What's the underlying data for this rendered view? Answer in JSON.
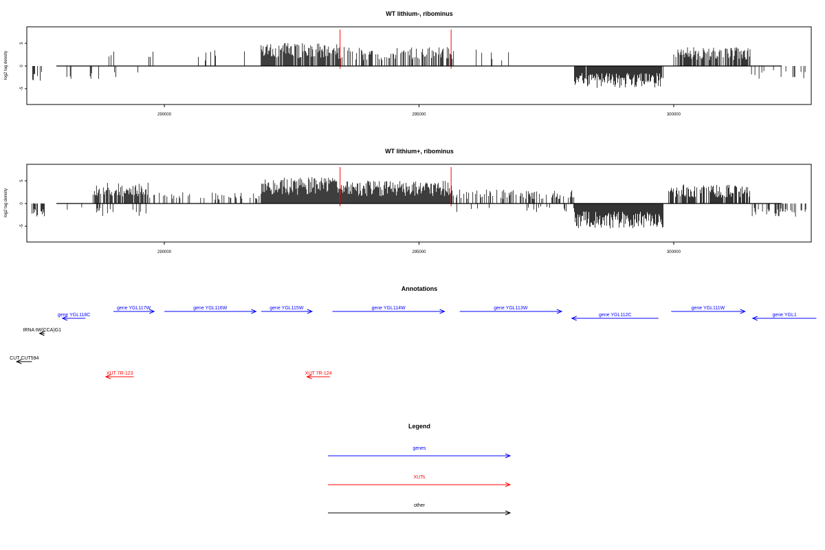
{
  "chart_data": [
    {
      "type": "bar",
      "title": "WT lithium-, ribominus",
      "ylabel": "log2 tag density",
      "xlim": [
        287300,
        302700
      ],
      "ylim": [
        -8,
        8
      ],
      "x_ticks": [
        290000,
        295000,
        300000
      ],
      "x_tick_labels": [
        "290000",
        "295000",
        "300000"
      ],
      "y_ticks": [
        -5,
        0,
        5
      ],
      "y_tick_labels": [
        "-5",
        "0",
        "5"
      ],
      "markers": [
        {
          "x": 293450,
          "color": "#ff0000"
        },
        {
          "x": 295630,
          "color": "#ff0000"
        }
      ],
      "segments": [
        {
          "from": 287400,
          "to": 287600,
          "density": 0.12,
          "amp": 3.3,
          "sign": -1
        },
        {
          "from": 287600,
          "to": 288850,
          "density": 0.012,
          "amp": 3.0,
          "sign": -1
        },
        {
          "from": 288250,
          "to": 289800,
          "density": 0.018,
          "amp": 3.0,
          "sign": 1
        },
        {
          "from": 288400,
          "to": 289500,
          "density": 0.008,
          "amp": 3.5,
          "sign": -1
        },
        {
          "from": 290600,
          "to": 291900,
          "density": 0.03,
          "amp": 3.4,
          "sign": 1
        },
        {
          "from": 291900,
          "to": 293450,
          "density": 0.26,
          "amp": 4.6,
          "sign": 1
        },
        {
          "from": 293450,
          "to": 295650,
          "density": 0.15,
          "amp": 3.8,
          "sign": 1
        },
        {
          "from": 295650,
          "to": 297500,
          "density": 0.012,
          "amp": 3.3,
          "sign": 1
        },
        {
          "from": 297500,
          "to": 298000,
          "density": 0.01,
          "amp": 3.0,
          "sign": 1
        },
        {
          "from": 298050,
          "to": 299800,
          "density": 0.3,
          "amp": 4.4,
          "sign": -1
        },
        {
          "from": 300000,
          "to": 301500,
          "density": 0.22,
          "amp": 3.8,
          "sign": 1
        },
        {
          "from": 301500,
          "to": 302600,
          "density": 0.04,
          "amp": 2.6,
          "sign": -1
        }
      ]
    },
    {
      "type": "bar",
      "title": "WT lithium+, ribominus",
      "ylabel": "log2 tag density",
      "xlim": [
        287300,
        302700
      ],
      "ylim": [
        -8,
        8
      ],
      "x_ticks": [
        290000,
        295000,
        300000
      ],
      "x_tick_labels": [
        "290000",
        "295000",
        "300000"
      ],
      "y_ticks": [
        -5,
        0,
        5
      ],
      "y_tick_labels": [
        "-5",
        "0",
        "5"
      ],
      "markers": [
        {
          "x": 293450,
          "color": "#ff0000"
        },
        {
          "x": 295630,
          "color": "#ff0000"
        }
      ],
      "segments": [
        {
          "from": 287400,
          "to": 287650,
          "density": 0.12,
          "amp": 2.6,
          "sign": -1
        },
        {
          "from": 287650,
          "to": 288600,
          "density": 0.02,
          "amp": 1.6,
          "sign": -1
        },
        {
          "from": 288600,
          "to": 289700,
          "density": 0.22,
          "amp": 4.2,
          "sign": 1
        },
        {
          "from": 288600,
          "to": 289700,
          "density": 0.05,
          "amp": 2.5,
          "sign": -1
        },
        {
          "from": 289700,
          "to": 291900,
          "density": 0.07,
          "amp": 2.3,
          "sign": 1
        },
        {
          "from": 291900,
          "to": 293450,
          "density": 0.45,
          "amp": 5.4,
          "sign": 1
        },
        {
          "from": 293450,
          "to": 295650,
          "density": 0.4,
          "amp": 4.6,
          "sign": 1
        },
        {
          "from": 295650,
          "to": 298050,
          "density": 0.12,
          "amp": 2.8,
          "sign": 1
        },
        {
          "from": 295700,
          "to": 298050,
          "density": 0.03,
          "amp": 1.8,
          "sign": -1
        },
        {
          "from": 298050,
          "to": 299800,
          "density": 0.5,
          "amp": 5.0,
          "sign": -1
        },
        {
          "from": 299900,
          "to": 301500,
          "density": 0.25,
          "amp": 3.8,
          "sign": 1
        },
        {
          "from": 301500,
          "to": 302600,
          "density": 0.1,
          "amp": 2.8,
          "sign": -1
        }
      ]
    }
  ],
  "annotations": {
    "title": "Annotations",
    "items": [
      {
        "label": "gene YGL117W",
        "from": 289000,
        "to": 289800,
        "strand": "+",
        "row": 0,
        "kind": "gene"
      },
      {
        "label": "gene YGL118C",
        "from": 288450,
        "to": 288000,
        "strand": "-",
        "row": 1,
        "kind": "gene"
      },
      {
        "label": "gene YGL116W",
        "from": 290000,
        "to": 291800,
        "strand": "+",
        "row": 0,
        "kind": "gene"
      },
      {
        "label": "gene YGL115W",
        "from": 291900,
        "to": 292900,
        "strand": "+",
        "row": 0,
        "kind": "gene"
      },
      {
        "label": "gene YGL114W",
        "from": 293300,
        "to": 295500,
        "strand": "+",
        "row": 0,
        "kind": "gene"
      },
      {
        "label": "gene YGL113W",
        "from": 295800,
        "to": 297800,
        "strand": "+",
        "row": 0,
        "kind": "gene"
      },
      {
        "label": "gene YGL112C",
        "from": 299700,
        "to": 298000,
        "strand": "-",
        "row": 1,
        "kind": "gene"
      },
      {
        "label": "gene YGL111W",
        "from": 299950,
        "to": 301400,
        "strand": "+",
        "row": 0,
        "kind": "gene"
      },
      {
        "label": "gene YGL1",
        "from": 302800,
        "to": 301550,
        "strand": "-",
        "row": 1,
        "kind": "gene"
      },
      {
        "label": "tRNA tW(CCA)G1",
        "from": 287650,
        "to": 287550,
        "strand": "-",
        "row": 2,
        "kind": "other"
      },
      {
        "label": "CUT CUT594",
        "from": 287400,
        "to": 287100,
        "strand": "-",
        "row": 3,
        "kind": "other"
      },
      {
        "label": "XUT 7R-123",
        "from": 289400,
        "to": 288850,
        "strand": "-",
        "row": 4,
        "kind": "xut"
      },
      {
        "label": "XUT 7R-124",
        "from": 293250,
        "to": 292800,
        "strand": "-",
        "row": 4,
        "kind": "xut"
      }
    ]
  },
  "legend": {
    "title": "Legend",
    "items": [
      {
        "label": "genes",
        "color": "#0000ff"
      },
      {
        "label": "XUTs",
        "color": "#ff0000"
      },
      {
        "label": "other",
        "color": "#000000"
      }
    ]
  },
  "colors": {
    "gene": "#0000ff",
    "xut": "#ff0000",
    "other": "#000000",
    "marker": "#ff0000"
  }
}
